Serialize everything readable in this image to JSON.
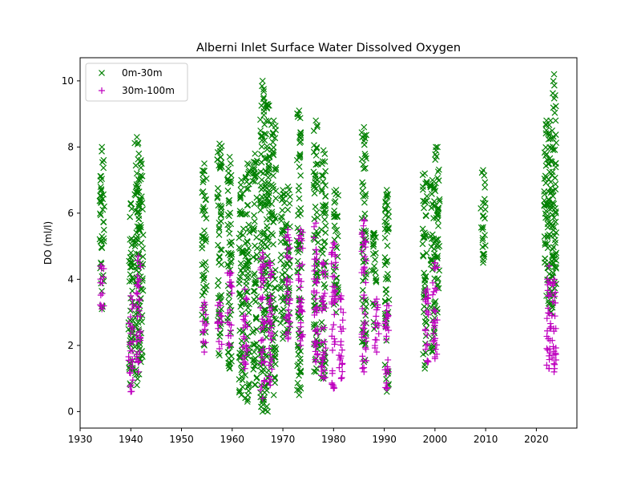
{
  "chart_data": {
    "type": "scatter",
    "title": "Alberni Inlet Surface Water Dissolved Oxygen",
    "xlabel": "",
    "ylabel": "DO (ml/l)",
    "xlim": [
      1930,
      2028
    ],
    "ylim": [
      -0.5,
      10.7
    ],
    "xticks": [
      1930,
      1940,
      1950,
      1960,
      1970,
      1980,
      1990,
      2000,
      2010,
      2020
    ],
    "yticks": [
      0,
      2,
      4,
      6,
      8,
      10
    ],
    "legend_position": "upper-left",
    "grid": false,
    "series": [
      {
        "name": "0m-30m",
        "marker": "x",
        "color": "#008000",
        "clusters": [
          {
            "x": 1934.3,
            "ymin": 3.1,
            "ymax": 8.0
          },
          {
            "x": 1940.0,
            "ymin": 0.8,
            "ymax": 6.3
          },
          {
            "x": 1941.2,
            "ymin": 0.8,
            "ymax": 8.3
          },
          {
            "x": 1942.0,
            "ymin": 1.5,
            "ymax": 7.6
          },
          {
            "x": 1954.5,
            "ymin": 2.0,
            "ymax": 7.5
          },
          {
            "x": 1957.5,
            "ymin": 1.7,
            "ymax": 8.1
          },
          {
            "x": 1959.5,
            "ymin": 1.3,
            "ymax": 7.7
          },
          {
            "x": 1961.8,
            "ymin": 0.5,
            "ymax": 7.0
          },
          {
            "x": 1963.0,
            "ymin": 0.3,
            "ymax": 7.5
          },
          {
            "x": 1964.5,
            "ymin": 0.8,
            "ymax": 7.8
          },
          {
            "x": 1966.0,
            "ymin": 0.0,
            "ymax": 10.0
          },
          {
            "x": 1967.0,
            "ymin": 0.0,
            "ymax": 9.3
          },
          {
            "x": 1968.2,
            "ymin": 0.5,
            "ymax": 8.8
          },
          {
            "x": 1970.0,
            "ymin": 2.2,
            "ymax": 6.7
          },
          {
            "x": 1971.0,
            "ymin": 2.4,
            "ymax": 6.8
          },
          {
            "x": 1973.2,
            "ymin": 0.5,
            "ymax": 9.1
          },
          {
            "x": 1976.5,
            "ymin": 1.2,
            "ymax": 8.8
          },
          {
            "x": 1978.0,
            "ymin": 1.0,
            "ymax": 7.9
          },
          {
            "x": 1980.5,
            "ymin": 3.0,
            "ymax": 6.7
          },
          {
            "x": 1986.0,
            "ymin": 1.5,
            "ymax": 8.6
          },
          {
            "x": 1988.0,
            "ymin": 2.5,
            "ymax": 5.4
          },
          {
            "x": 1990.5,
            "ymin": 0.6,
            "ymax": 6.7
          },
          {
            "x": 1998.0,
            "ymin": 1.3,
            "ymax": 7.2
          },
          {
            "x": 1999.5,
            "ymin": 1.8,
            "ymax": 7.0
          },
          {
            "x": 2000.5,
            "ymin": 3.0,
            "ymax": 8.0
          },
          {
            "x": 2009.5,
            "ymin": 4.5,
            "ymax": 7.3
          },
          {
            "x": 2022.0,
            "ymin": 3.5,
            "ymax": 8.8
          },
          {
            "x": 2022.8,
            "ymin": 3.0,
            "ymax": 8.8
          },
          {
            "x": 2023.5,
            "ymin": 3.5,
            "ymax": 10.2
          }
        ]
      },
      {
        "name": "30m-100m",
        "marker": "+",
        "color": "#bf00bf",
        "clusters": [
          {
            "x": 1934.3,
            "ymin": 3.1,
            "ymax": 4.4
          },
          {
            "x": 1940.0,
            "ymin": 0.6,
            "ymax": 3.5
          },
          {
            "x": 1941.5,
            "ymin": 1.2,
            "ymax": 4.7
          },
          {
            "x": 1954.5,
            "ymin": 1.8,
            "ymax": 3.3
          },
          {
            "x": 1957.5,
            "ymin": 1.9,
            "ymax": 3.3
          },
          {
            "x": 1959.5,
            "ymin": 2.0,
            "ymax": 4.2
          },
          {
            "x": 1962.5,
            "ymin": 1.3,
            "ymax": 3.7
          },
          {
            "x": 1966.0,
            "ymin": 0.4,
            "ymax": 4.8
          },
          {
            "x": 1967.5,
            "ymin": 0.8,
            "ymax": 4.5
          },
          {
            "x": 1971.0,
            "ymin": 2.2,
            "ymax": 5.5
          },
          {
            "x": 1973.5,
            "ymin": 2.0,
            "ymax": 5.5
          },
          {
            "x": 1976.5,
            "ymin": 1.5,
            "ymax": 5.7
          },
          {
            "x": 1978.0,
            "ymin": 1.0,
            "ymax": 4.5
          },
          {
            "x": 1980.0,
            "ymin": 0.7,
            "ymax": 5.1
          },
          {
            "x": 1981.5,
            "ymin": 1.0,
            "ymax": 3.5
          },
          {
            "x": 1986.0,
            "ymin": 1.2,
            "ymax": 5.8
          },
          {
            "x": 1988.5,
            "ymin": 1.8,
            "ymax": 3.4
          },
          {
            "x": 1990.5,
            "ymin": 0.7,
            "ymax": 3.2
          },
          {
            "x": 1998.5,
            "ymin": 1.5,
            "ymax": 3.7
          },
          {
            "x": 2000.0,
            "ymin": 1.6,
            "ymax": 4.5
          },
          {
            "x": 2022.5,
            "ymin": 1.3,
            "ymax": 4.4
          },
          {
            "x": 2023.5,
            "ymin": 1.2,
            "ymax": 4.0
          }
        ]
      }
    ]
  }
}
